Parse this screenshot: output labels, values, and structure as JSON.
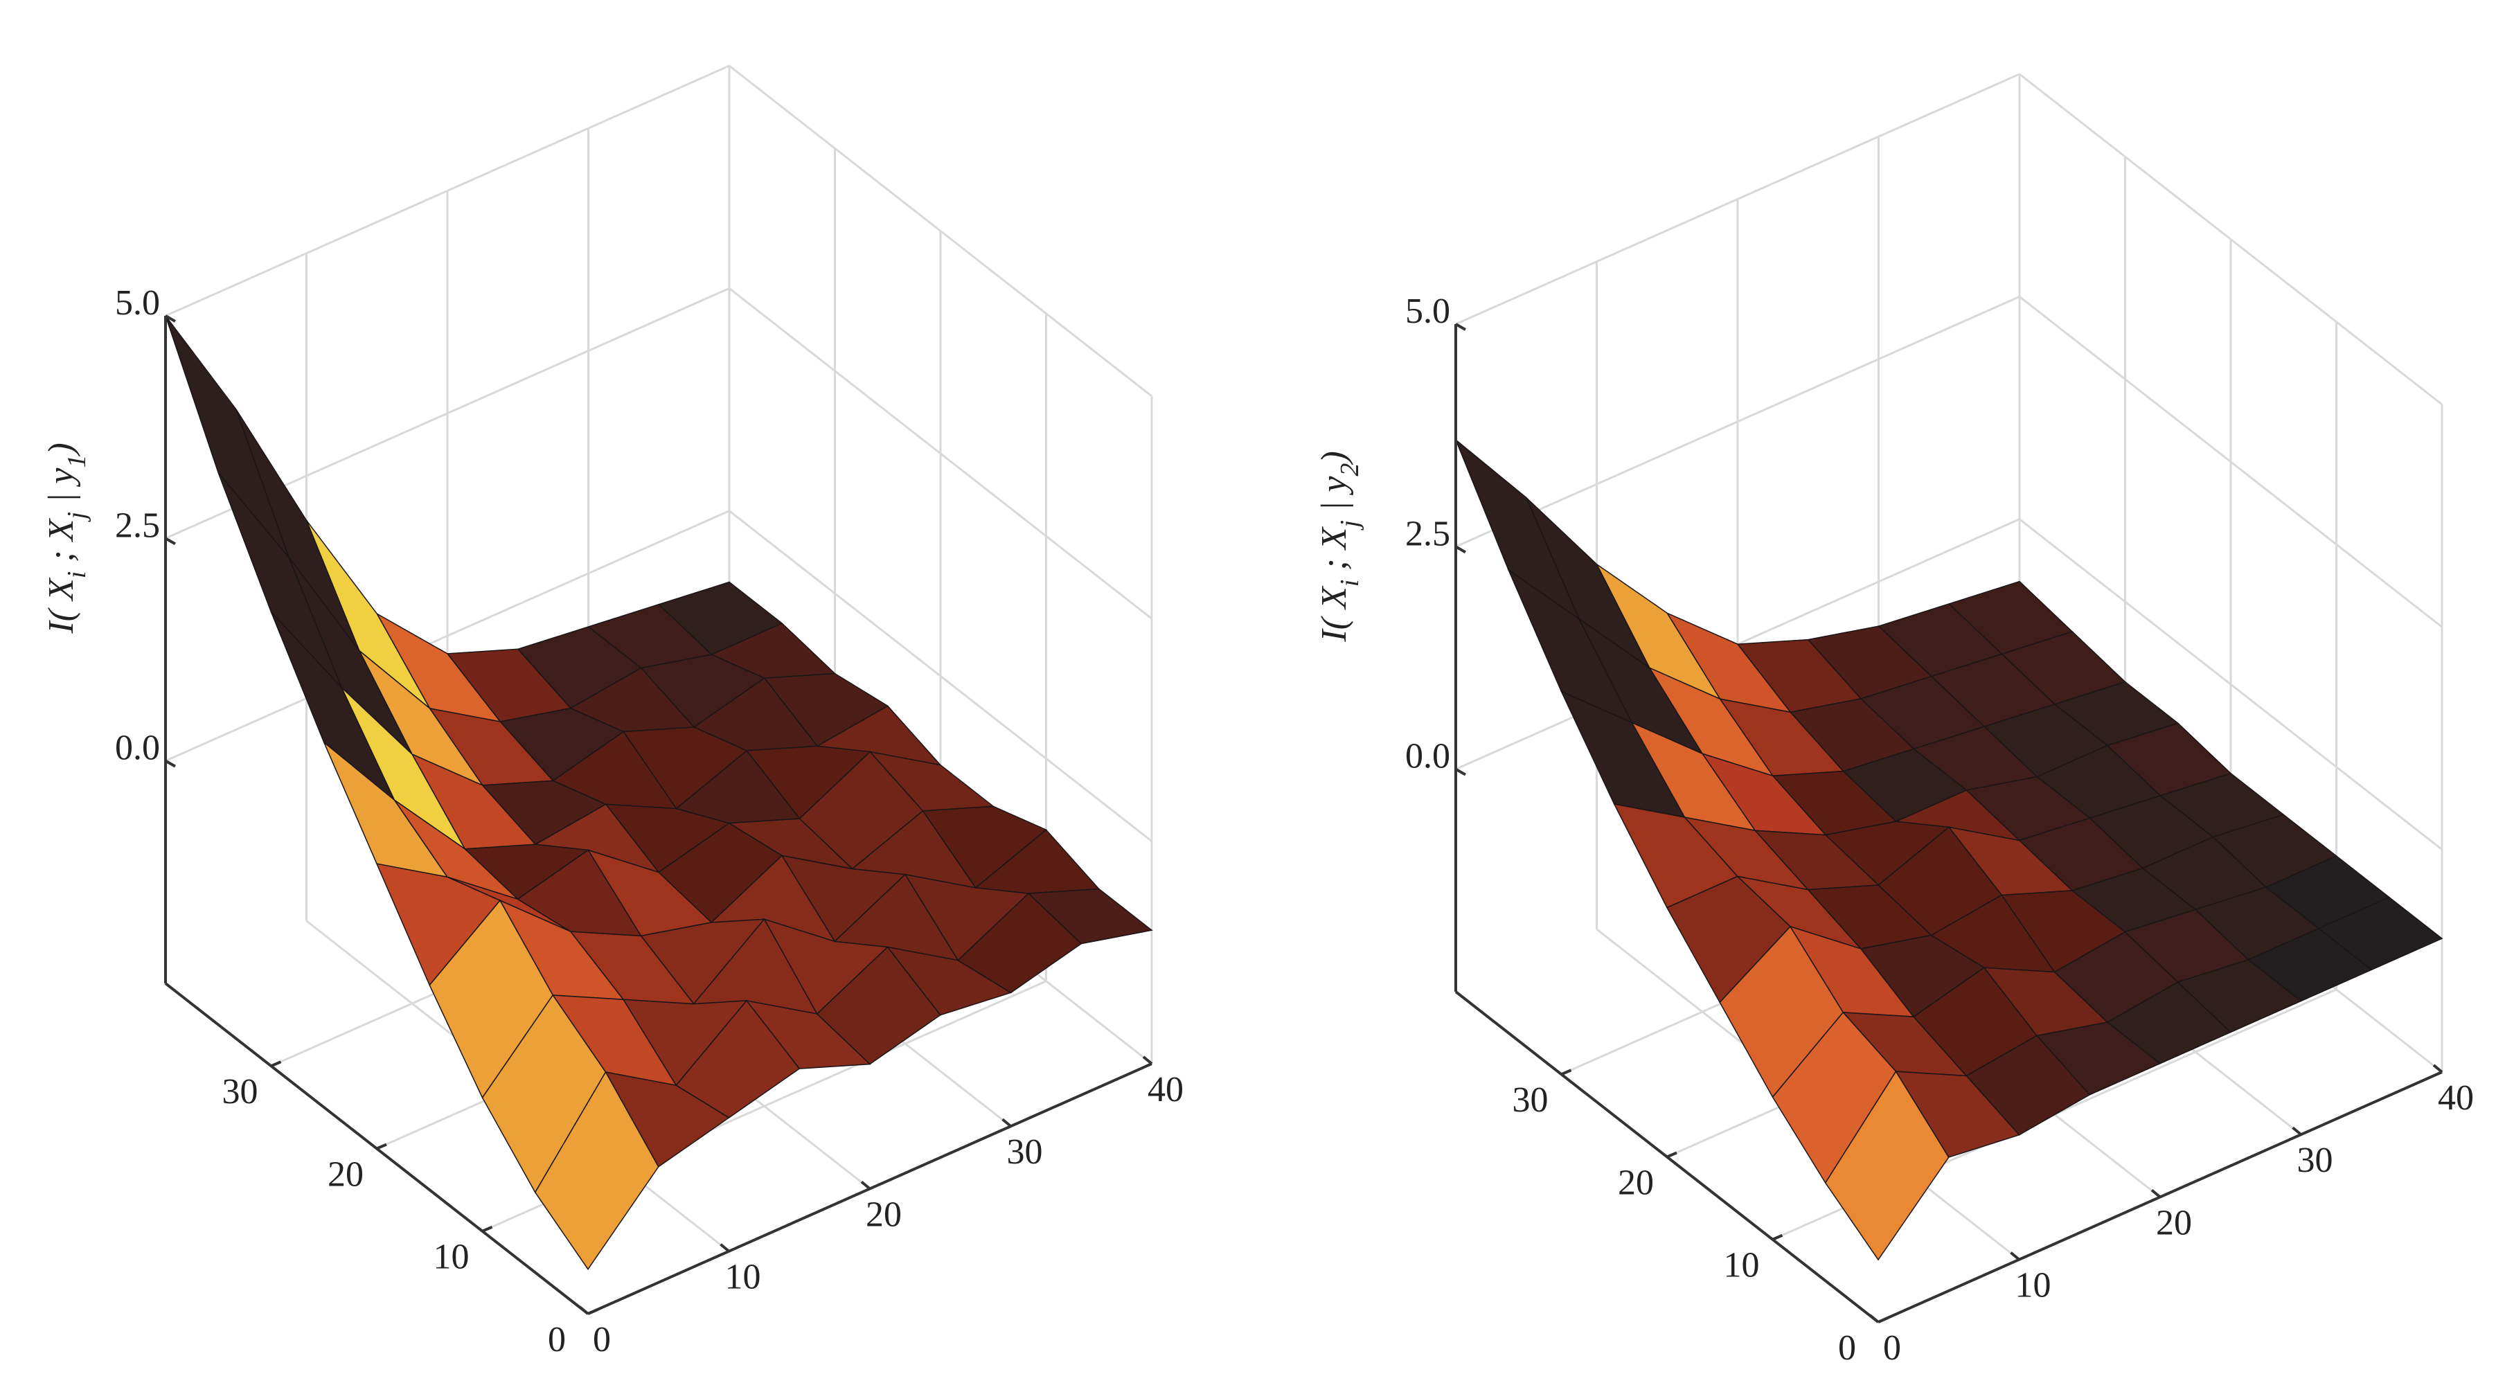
{
  "chart_data": [
    {
      "type": "surface",
      "zlabel": [
        "I( X",
        "i",
        " ; X",
        "j",
        " | y",
        "1",
        ")"
      ],
      "x": [
        0,
        5,
        10,
        15,
        20,
        25,
        30,
        35,
        40
      ],
      "y": [
        0,
        5,
        10,
        15,
        20,
        25,
        30,
        35,
        40
      ],
      "z": [
        [
          -2.0,
          -1.2,
          -1.0,
          -0.8,
          -1.1,
          -0.9,
          -1.0,
          -0.8,
          -1.0
        ],
        [
          -1.6,
          -0.6,
          -1.1,
          -0.5,
          -1.0,
          -0.6,
          -1.1,
          -0.7,
          -1.0
        ],
        [
          -1.0,
          -0.2,
          -0.6,
          -1.0,
          -0.4,
          -1.0,
          -0.6,
          -1.1,
          -0.8
        ],
        [
          -0.2,
          0.4,
          -0.3,
          -0.7,
          -0.9,
          -0.5,
          -1.0,
          -0.7,
          -1.0
        ],
        [
          0.7,
          0.2,
          -0.4,
          -0.2,
          -0.8,
          -0.6,
          -0.9,
          -0.5,
          -1.0
        ],
        [
          1.6,
          0.6,
          -0.3,
          -0.6,
          -0.5,
          -0.9,
          -0.6,
          -0.9,
          -0.8
        ],
        [
          2.6,
          1.4,
          0.3,
          -0.4,
          -0.7,
          -0.5,
          -0.8,
          -0.6,
          -0.9
        ],
        [
          3.7,
          2.4,
          1.0,
          0.0,
          -0.5,
          -0.7,
          -0.6,
          -0.8,
          -0.8
        ],
        [
          5.0,
          3.6,
          2.0,
          0.6,
          -0.2,
          -0.5,
          -0.6,
          -0.7,
          -0.8
        ]
      ],
      "xlim": [
        0,
        40
      ],
      "ylim": [
        0,
        40
      ],
      "zlim": [
        -2.5,
        5
      ],
      "xticks": [
        0,
        10,
        20,
        30,
        40
      ],
      "yticks": [
        0,
        10,
        20,
        30
      ],
      "zticks": [
        {
          "value": 0,
          "label": "0.0"
        },
        2.5,
        {
          "value": 5,
          "label": "5.0"
        }
      ],
      "grid": true,
      "colormap": [
        "#231f20",
        "#5a1d14",
        "#b53a22",
        "#e8702f",
        "#f0d040"
      ]
    },
    {
      "type": "surface",
      "zlabel": [
        "I( X",
        "i",
        " ; X",
        "j",
        " | y",
        "2",
        ")"
      ],
      "x": [
        0,
        5,
        10,
        15,
        20,
        25,
        30,
        35,
        40
      ],
      "y": [
        0,
        5,
        10,
        15,
        20,
        25,
        30,
        35,
        40
      ],
      "z": [
        [
          -1.8,
          -1.0,
          -1.1,
          -1.0,
          -1.0,
          -1.0,
          -1.0,
          -1.0,
          -1.0
        ],
        [
          -1.4,
          -0.5,
          -0.9,
          -0.8,
          -1.0,
          -0.9,
          -1.0,
          -1.0,
          -1.0
        ],
        [
          -0.9,
          -0.3,
          -0.7,
          -0.5,
          -0.9,
          -0.8,
          -0.9,
          -1.0,
          -1.0
        ],
        [
          -0.3,
          0.2,
          -0.4,
          -0.6,
          -0.5,
          -0.8,
          -0.9,
          -0.9,
          -1.0
        ],
        [
          0.3,
          0.3,
          -0.2,
          -0.5,
          -0.2,
          -0.7,
          -0.8,
          -0.9,
          -1.0
        ],
        [
          1.0,
          0.5,
          0.0,
          -0.4,
          -0.6,
          -0.6,
          -0.8,
          -0.8,
          -0.9
        ],
        [
          1.8,
          1.1,
          0.4,
          -0.2,
          -0.5,
          -0.6,
          -0.7,
          -0.8,
          -0.9
        ],
        [
          2.7,
          1.8,
          0.9,
          0.2,
          -0.3,
          -0.5,
          -0.6,
          -0.7,
          -0.8
        ],
        [
          3.7,
          2.7,
          1.6,
          0.7,
          0.0,
          -0.3,
          -0.5,
          -0.6,
          -0.7
        ]
      ],
      "xlim": [
        0,
        40
      ],
      "ylim": [
        0,
        40
      ],
      "zlim": [
        -2.5,
        5
      ],
      "xticks": [
        0,
        10,
        20,
        30,
        40
      ],
      "yticks": [
        0,
        10,
        20,
        30
      ],
      "zticks": [
        {
          "value": 0,
          "label": "0.0"
        },
        2.5,
        {
          "value": 5,
          "label": "5.0"
        }
      ],
      "grid": true,
      "colormap": [
        "#231f20",
        "#5a1d14",
        "#b53a22",
        "#e8702f",
        "#f0d040"
      ]
    }
  ]
}
